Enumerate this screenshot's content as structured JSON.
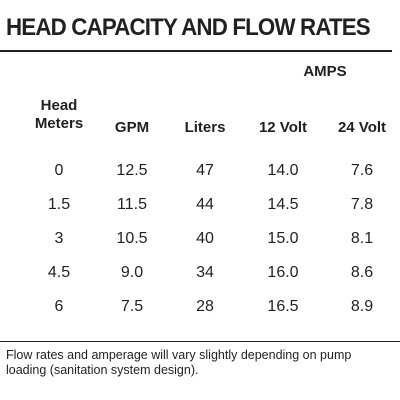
{
  "title": "HEAD CAPACITY AND FLOW RATES",
  "table": {
    "group_header": "AMPS",
    "columns": {
      "head_line1": "Head",
      "head_line2": "Meters",
      "gpm": "GPM",
      "liters": "Liters",
      "v12": "12 Volt",
      "v24": "24 Volt"
    },
    "rows": [
      {
        "head": "0",
        "gpm": "12.5",
        "liters": "47",
        "v12": "14.0",
        "v24": "7.6"
      },
      {
        "head": "1.5",
        "gpm": "11.5",
        "liters": "44",
        "v12": "14.5",
        "v24": "7.8"
      },
      {
        "head": "3",
        "gpm": "10.5",
        "liters": "40",
        "v12": "15.0",
        "v24": "8.1"
      },
      {
        "head": "4.5",
        "gpm": "9.0",
        "liters": "34",
        "v12": "16.0",
        "v24": "8.6"
      },
      {
        "head": "6",
        "gpm": "7.5",
        "liters": "28",
        "v12": "16.5",
        "v24": "8.9"
      }
    ]
  },
  "footnote": "Flow rates and amperage will vary slightly depending on pump loading (sanitation system design)."
}
